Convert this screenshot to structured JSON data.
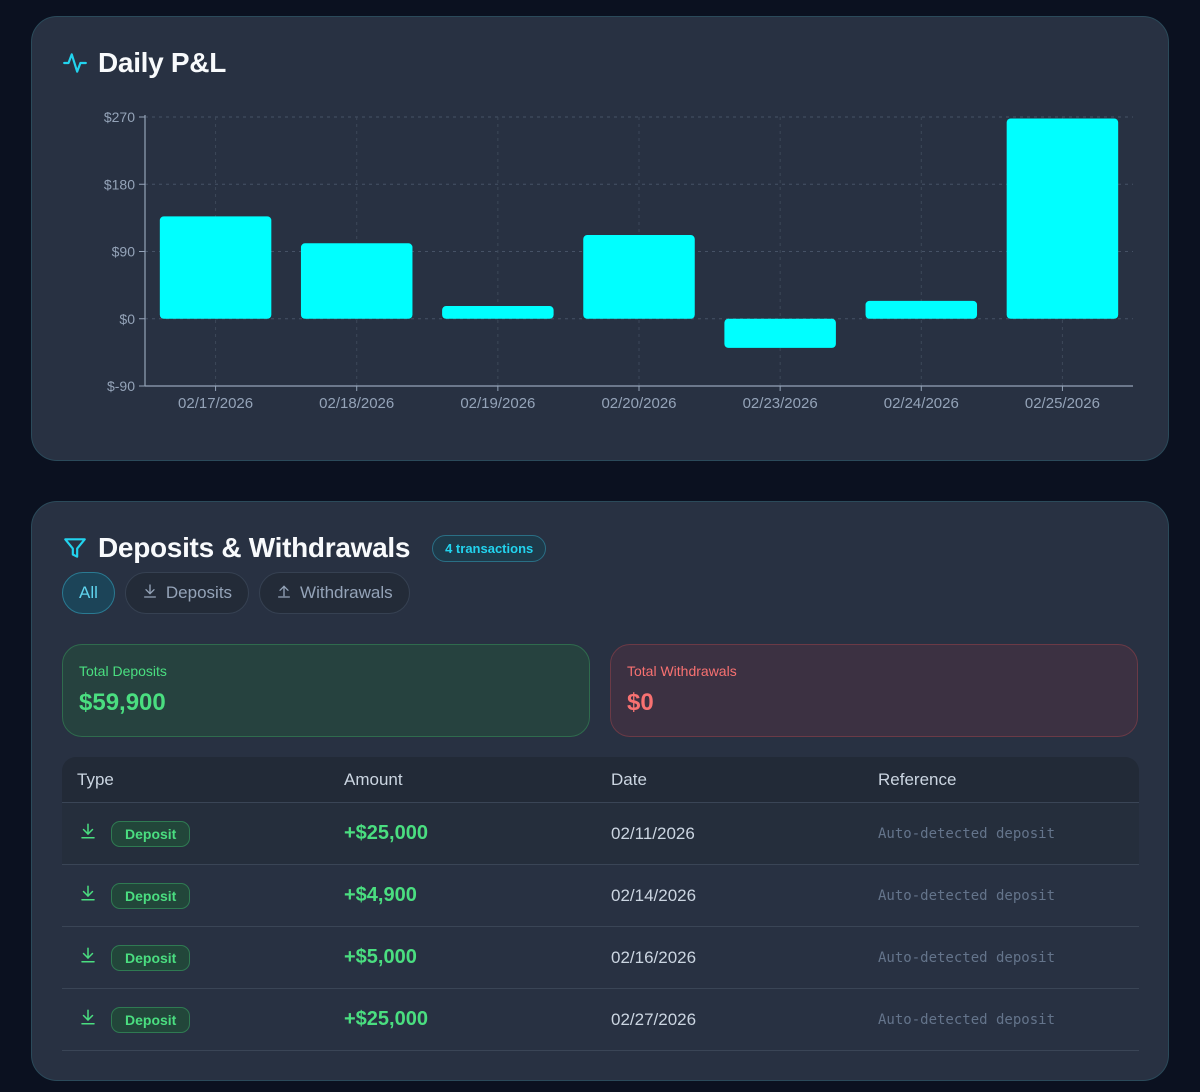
{
  "pnl": {
    "title": "Daily P&L",
    "title_icon": "activity-icon"
  },
  "chart_data": {
    "type": "bar",
    "title": "Daily P&L",
    "xlabel": "",
    "ylabel": "",
    "ylim": [
      -90,
      270
    ],
    "yticks": [
      270,
      180,
      90,
      0,
      -90
    ],
    "ytick_labels": [
      "$270",
      "$180",
      "$90",
      "$0",
      "$-90"
    ],
    "grid": true,
    "bar_color": "#00ffff",
    "categories": [
      "02/17/2026",
      "02/18/2026",
      "02/19/2026",
      "02/20/2026",
      "02/23/2026",
      "02/24/2026",
      "02/25/2026"
    ],
    "values": [
      137,
      101,
      17,
      112,
      -39,
      24,
      268
    ]
  },
  "dw": {
    "title": "Deposits & Withdrawals",
    "title_icon": "filter-icon",
    "count_badge": "4 transactions",
    "filters": {
      "all": "All",
      "deposits": "Deposits",
      "withdrawals": "Withdrawals"
    },
    "summary": {
      "deposits_label": "Total Deposits",
      "deposits_value": "$59,900",
      "withdrawals_label": "Total Withdrawals",
      "withdrawals_value": "$0"
    },
    "table": {
      "headers": {
        "type": "Type",
        "amount": "Amount",
        "date": "Date",
        "reference": "Reference"
      },
      "rows": [
        {
          "type": "Deposit",
          "amount": "+$25,000",
          "date": "02/11/2026",
          "reference": "Auto-detected deposit"
        },
        {
          "type": "Deposit",
          "amount": "+$4,900",
          "date": "02/14/2026",
          "reference": "Auto-detected deposit"
        },
        {
          "type": "Deposit",
          "amount": "+$5,000",
          "date": "02/16/2026",
          "reference": "Auto-detected deposit"
        },
        {
          "type": "Deposit",
          "amount": "+$25,000",
          "date": "02/27/2026",
          "reference": "Auto-detected deposit"
        }
      ]
    }
  },
  "colors": {
    "accent": "#22d3ee",
    "positive": "#4ade80",
    "negative": "#f87171",
    "bar": "#00ffff"
  }
}
